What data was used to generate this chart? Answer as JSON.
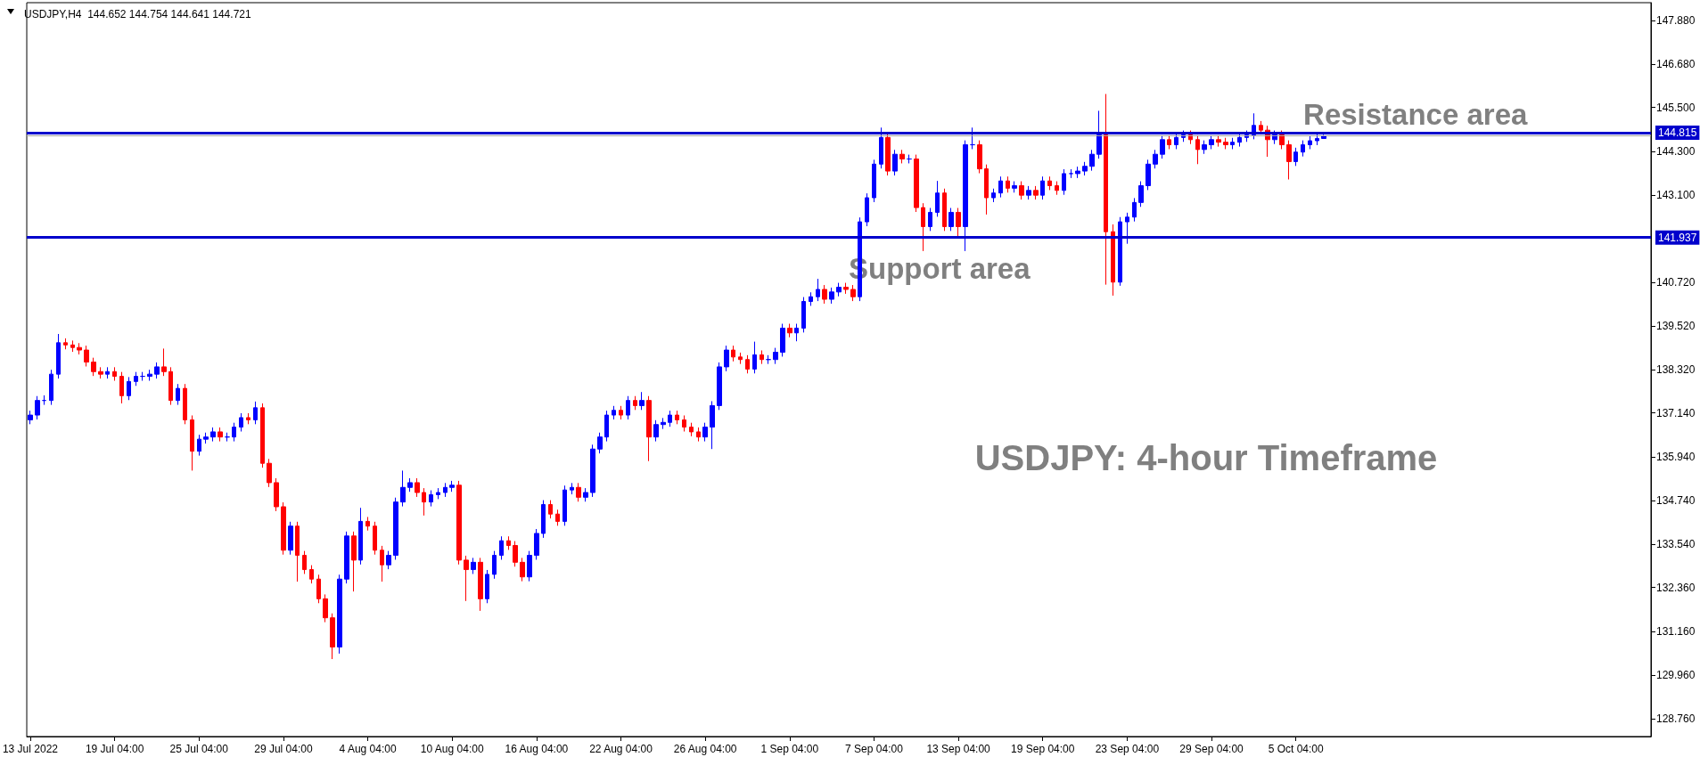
{
  "chart_data": {
    "type": "candlestick",
    "title": "USDJPY,H4  144.652 144.754 144.641 144.721",
    "annotations": [
      {
        "text": "Resistance area",
        "y": 144.815
      },
      {
        "text": "Support area",
        "y": 141.937
      },
      "USDJPY: 4-hour Timeframe"
    ],
    "categories": [
      "13 Jul 2022",
      null,
      null,
      null,
      null,
      null,
      null,
      null,
      null,
      null,
      null,
      null,
      "19 Jul 04:00",
      null,
      null,
      null,
      null,
      null,
      null,
      null,
      null,
      null,
      null,
      null,
      "25 Jul 04:00",
      null,
      null,
      null,
      null,
      null,
      null,
      null,
      null,
      null,
      null,
      null,
      "29 Jul 04:00",
      null,
      null,
      null,
      null,
      null,
      null,
      null,
      null,
      null,
      null,
      null,
      "4 Aug 04:00",
      null,
      null,
      null,
      null,
      null,
      null,
      null,
      null,
      null,
      null,
      null,
      "10 Aug 04:00",
      null,
      null,
      null,
      null,
      null,
      null,
      null,
      null,
      null,
      null,
      null,
      "16 Aug 04:00",
      null,
      null,
      null,
      null,
      null,
      null,
      null,
      null,
      null,
      null,
      null,
      "22 Aug 04:00",
      null,
      null,
      null,
      null,
      null,
      null,
      null,
      null,
      null,
      null,
      null,
      "26 Aug 04:00",
      null,
      null,
      null,
      null,
      null,
      null,
      null,
      null,
      null,
      null,
      null,
      "1 Sep 04:00",
      null,
      null,
      null,
      null,
      null,
      null,
      null,
      null,
      null,
      null,
      null,
      "7 Sep 04:00",
      null,
      null,
      null,
      null,
      null,
      null,
      null,
      null,
      null,
      null,
      null,
      "13 Sep 04:00",
      null,
      null,
      null,
      null,
      null,
      null,
      null,
      null,
      null,
      null,
      null,
      "19 Sep 04:00",
      null,
      null,
      null,
      null,
      null,
      null,
      null,
      null,
      null,
      null,
      null,
      "23 Sep 04:00",
      null,
      null,
      null,
      null,
      null,
      null,
      null,
      null,
      null,
      null,
      null,
      "29 Sep 04:00",
      null,
      null,
      null,
      null,
      null,
      null,
      null,
      null,
      null,
      null,
      null,
      "5 Oct 04:00",
      null,
      null,
      null,
      null,
      null,
      null,
      null,
      null,
      null,
      null,
      null,
      null,
      null,
      null,
      null,
      null,
      null,
      null,
      null,
      null,
      null,
      null,
      null,
      null,
      null,
      null,
      null,
      null,
      null,
      null,
      null,
      null,
      null,
      null,
      null,
      null,
      null,
      null,
      null,
      null,
      null,
      null,
      null,
      null,
      null,
      null,
      null,
      null,
      null,
      null
    ],
    "colors": [
      "#0000ff",
      "#0000ff",
      "#0000ff",
      "#0000ff",
      "#0000ff",
      "#ff0000",
      "#ff0000",
      "#ff0000",
      "#ff0000",
      "#ff0000",
      "#ff0000",
      "#0000ff",
      "#ff0000",
      "#ff0000",
      "#0000ff",
      "#0000ff",
      "#0000ff",
      "#0000ff",
      "#0000ff",
      "#ff0000",
      "#ff0000",
      "#0000ff",
      "#ff0000",
      "#ff0000",
      "#0000ff",
      "#0000ff",
      "#0000ff",
      "#ff0000",
      "#0000ff",
      "#0000ff",
      "#0000ff",
      "#ff0000",
      "#0000ff",
      "#ff0000",
      "#ff0000",
      "#ff0000",
      "#ff0000",
      "#0000ff",
      "#ff0000",
      "#ff0000",
      "#ff0000",
      "#ff0000",
      "#ff0000",
      "#ff0000",
      "#0000ff",
      "#0000ff",
      "#ff0000",
      "#0000ff",
      "#ff0000",
      "#ff0000",
      "#ff0000",
      "#0000ff",
      "#0000ff",
      "#0000ff",
      "#0000ff",
      "#ff0000",
      "#ff0000",
      "#0000ff",
      "#0000ff",
      "#0000ff",
      "#0000ff",
      "#ff0000",
      "#ff0000",
      "#0000ff",
      "#ff0000",
      "#0000ff",
      "#0000ff",
      "#0000ff",
      "#ff0000",
      "#ff0000",
      "#ff0000",
      "#0000ff",
      "#0000ff",
      "#0000ff",
      "#ff0000",
      "#ff0000",
      "#0000ff",
      "#0000ff",
      "#ff0000",
      "#0000ff",
      "#0000ff",
      "#0000ff",
      "#0000ff",
      "#0000ff",
      "#ff0000",
      "#0000ff",
      "#ff0000",
      "#0000ff",
      "#ff0000",
      "#0000ff",
      "#0000ff",
      "#0000ff",
      "#ff0000",
      "#ff0000",
      "#ff0000",
      "#ff0000",
      "#0000ff",
      "#0000ff",
      "#0000ff",
      "#0000ff",
      "#ff0000",
      "#ff0000",
      "#ff0000",
      "#0000ff",
      "#ff0000",
      "#0000ff",
      "#0000ff",
      "#0000ff",
      "#ff0000",
      "#0000ff",
      "#0000ff",
      "#0000ff",
      "#0000ff",
      "#ff0000",
      "#0000ff",
      "#0000ff",
      "#ff0000",
      "#ff0000",
      "#0000ff",
      "#0000ff",
      "#0000ff",
      "#0000ff",
      "#ff0000",
      "#0000ff",
      "#ff0000",
      "#0000ff",
      "#ff0000",
      "#ff0000",
      "#0000ff",
      "#0000ff",
      "#ff0000",
      "#0000ff",
      "#ff0000",
      "#0000ff",
      "#0000ff",
      "#ff0000",
      "#ff0000",
      "#0000ff",
      "#0000ff",
      "#ff0000",
      "#0000ff",
      "#ff0000",
      "#0000ff",
      "#ff0000",
      "#0000ff",
      "#ff0000",
      "#ff0000",
      "#0000ff",
      "#0000ff",
      "#0000ff",
      "#0000ff",
      "#0000ff",
      "#0000ff",
      "#ff0000",
      "#ff0000",
      "#0000ff",
      "#0000ff",
      "#0000ff",
      "#0000ff",
      "#0000ff",
      "#0000ff",
      "#0000ff",
      "#ff0000",
      "#0000ff",
      "#0000ff",
      "#ff0000",
      "#ff0000",
      "#0000ff",
      "#0000ff",
      "#ff0000",
      "#ff0000",
      "#0000ff",
      "#0000ff",
      "#0000ff",
      "#0000ff",
      "#ff0000",
      "#ff0000",
      "#0000ff",
      "#ff0000",
      "#ff0000",
      "#0000ff",
      "#0000ff",
      "#0000ff",
      "#0000ff",
      "#0000ff",
      null,
      null,
      null,
      null,
      null,
      null,
      null,
      null,
      null,
      null,
      null,
      null,
      null,
      null,
      null,
      null,
      null,
      null,
      null,
      null,
      null,
      null,
      null,
      null,
      null,
      null,
      null,
      null,
      null,
      null,
      null,
      null,
      null,
      null,
      null,
      null,
      null,
      null,
      null,
      null,
      null,
      null,
      null,
      null,
      null,
      null
    ],
    "ohlc": [
      [
        136.95,
        137.2,
        136.83,
        137.08
      ],
      [
        137.08,
        137.6,
        136.96,
        137.48
      ],
      [
        137.48,
        137.62,
        137.36,
        137.48
      ],
      [
        137.48,
        138.32,
        137.36,
        138.2
      ],
      [
        138.2,
        139.3,
        138.08,
        139.06
      ],
      [
        139.06,
        139.18,
        138.88,
        139.0
      ],
      [
        139.0,
        139.12,
        138.81,
        138.93
      ],
      [
        138.93,
        139.05,
        138.74,
        138.86
      ],
      [
        138.86,
        138.98,
        138.41,
        138.53
      ],
      [
        138.53,
        138.65,
        138.15,
        138.27
      ],
      [
        138.27,
        138.39,
        138.08,
        138.2
      ],
      [
        138.2,
        138.39,
        138.08,
        138.27
      ],
      [
        138.27,
        138.39,
        138.02,
        138.14
      ],
      [
        138.14,
        138.26,
        137.4,
        137.61
      ],
      [
        137.61,
        138.12,
        137.49,
        138.0
      ],
      [
        138.0,
        138.26,
        137.88,
        138.14
      ],
      [
        138.14,
        138.26,
        138.02,
        138.14
      ],
      [
        138.14,
        138.32,
        138.02,
        138.2
      ],
      [
        138.2,
        138.52,
        138.08,
        138.4
      ],
      [
        138.4,
        138.9,
        138.15,
        138.27
      ],
      [
        138.27,
        138.39,
        137.36,
        137.48
      ],
      [
        137.48,
        137.93,
        137.36,
        137.81
      ],
      [
        137.81,
        137.93,
        136.83,
        136.95
      ],
      [
        136.95,
        137.07,
        135.56,
        136.09
      ],
      [
        136.09,
        136.54,
        135.97,
        136.42
      ],
      [
        136.42,
        136.6,
        136.3,
        136.48
      ],
      [
        136.48,
        136.74,
        136.36,
        136.62
      ],
      [
        136.62,
        136.74,
        136.36,
        136.48
      ],
      [
        136.48,
        136.6,
        136.36,
        136.48
      ],
      [
        136.48,
        136.87,
        136.36,
        136.75
      ],
      [
        136.75,
        137.13,
        136.63,
        137.01
      ],
      [
        137.01,
        137.13,
        136.83,
        136.95
      ],
      [
        136.95,
        137.45,
        136.83,
        137.28
      ],
      [
        137.28,
        137.4,
        135.64,
        135.76
      ],
      [
        135.76,
        135.88,
        135.11,
        135.23
      ],
      [
        135.23,
        135.35,
        134.45,
        134.57
      ],
      [
        134.57,
        134.69,
        133.26,
        133.38
      ],
      [
        133.38,
        134.16,
        133.26,
        134.04
      ],
      [
        134.04,
        134.16,
        132.52,
        133.24
      ],
      [
        133.24,
        133.36,
        132.73,
        132.85
      ],
      [
        132.85,
        132.97,
        132.47,
        132.59
      ],
      [
        132.59,
        132.71,
        131.93,
        132.05
      ],
      [
        132.05,
        132.17,
        131.41,
        131.53
      ],
      [
        131.53,
        131.65,
        130.4,
        130.73
      ],
      [
        130.73,
        132.71,
        130.55,
        132.59
      ],
      [
        132.59,
        133.89,
        132.47,
        133.77
      ],
      [
        133.77,
        133.89,
        132.25,
        133.11
      ],
      [
        133.11,
        134.54,
        132.99,
        134.17
      ],
      [
        134.17,
        134.29,
        133.92,
        134.04
      ],
      [
        134.04,
        134.16,
        133.26,
        133.38
      ],
      [
        133.38,
        133.5,
        132.52,
        132.98
      ],
      [
        132.98,
        133.36,
        132.86,
        133.24
      ],
      [
        133.24,
        134.82,
        133.12,
        134.7
      ],
      [
        134.7,
        135.56,
        134.58,
        135.1
      ],
      [
        135.1,
        135.35,
        134.98,
        135.23
      ],
      [
        135.23,
        135.35,
        134.84,
        134.96
      ],
      [
        134.96,
        135.08,
        134.33,
        134.7
      ],
      [
        134.7,
        135.02,
        134.58,
        134.9
      ],
      [
        134.9,
        135.08,
        134.78,
        134.96
      ],
      [
        134.96,
        135.22,
        134.84,
        135.1
      ],
      [
        135.1,
        135.28,
        134.98,
        135.16
      ],
      [
        135.16,
        135.28,
        132.99,
        133.11
      ],
      [
        133.11,
        133.23,
        131.99,
        132.85
      ],
      [
        132.85,
        133.17,
        132.73,
        133.05
      ],
      [
        133.05,
        133.17,
        131.72,
        132.05
      ],
      [
        132.05,
        132.84,
        131.93,
        132.72
      ],
      [
        132.72,
        133.36,
        132.6,
        133.24
      ],
      [
        133.24,
        133.76,
        133.12,
        133.64
      ],
      [
        133.64,
        133.76,
        133.39,
        133.51
      ],
      [
        133.51,
        133.63,
        132.93,
        133.05
      ],
      [
        133.05,
        133.17,
        132.53,
        132.65
      ],
      [
        132.65,
        133.36,
        132.53,
        133.24
      ],
      [
        133.24,
        133.96,
        133.12,
        133.84
      ],
      [
        133.84,
        134.75,
        133.72,
        134.63
      ],
      [
        134.63,
        134.75,
        134.25,
        134.37
      ],
      [
        134.37,
        134.49,
        134.05,
        134.17
      ],
      [
        134.17,
        135.15,
        134.05,
        135.03
      ],
      [
        135.03,
        135.22,
        134.91,
        135.1
      ],
      [
        135.1,
        135.22,
        134.71,
        134.83
      ],
      [
        134.83,
        135.08,
        134.71,
        134.96
      ],
      [
        134.96,
        136.27,
        134.84,
        136.15
      ],
      [
        136.15,
        136.6,
        136.03,
        136.48
      ],
      [
        136.48,
        137.2,
        136.36,
        137.08
      ],
      [
        137.08,
        137.33,
        136.96,
        137.21
      ],
      [
        137.21,
        137.33,
        136.96,
        137.08
      ],
      [
        137.08,
        137.6,
        136.96,
        137.48
      ],
      [
        137.48,
        137.6,
        137.22,
        137.34
      ],
      [
        137.34,
        137.71,
        137.22,
        137.48
      ],
      [
        137.48,
        137.6,
        135.82,
        136.48
      ],
      [
        136.48,
        136.94,
        136.36,
        136.82
      ],
      [
        136.82,
        137.0,
        136.7,
        136.88
      ],
      [
        136.88,
        137.2,
        136.76,
        137.08
      ],
      [
        137.08,
        137.2,
        136.83,
        136.95
      ],
      [
        136.95,
        137.07,
        136.63,
        136.75
      ],
      [
        136.75,
        136.87,
        136.5,
        136.62
      ],
      [
        136.62,
        136.74,
        136.36,
        136.48
      ],
      [
        136.48,
        136.87,
        136.36,
        136.75
      ],
      [
        136.75,
        137.46,
        136.15,
        137.34
      ],
      [
        137.34,
        138.52,
        137.22,
        138.4
      ],
      [
        138.4,
        138.98,
        138.28,
        138.86
      ],
      [
        138.86,
        138.98,
        138.55,
        138.67
      ],
      [
        138.67,
        138.79,
        138.48,
        138.6
      ],
      [
        138.6,
        138.72,
        138.22,
        138.34
      ],
      [
        138.34,
        139.09,
        138.22,
        138.73
      ],
      [
        138.73,
        138.85,
        138.48,
        138.6
      ],
      [
        138.6,
        138.72,
        138.48,
        138.6
      ],
      [
        138.6,
        138.92,
        138.48,
        138.8
      ],
      [
        138.8,
        139.58,
        138.68,
        139.46
      ],
      [
        139.46,
        139.58,
        139.21,
        139.33
      ],
      [
        139.33,
        139.58,
        139.1,
        139.46
      ],
      [
        139.46,
        140.31,
        139.34,
        140.19
      ],
      [
        140.19,
        140.44,
        140.07,
        140.32
      ],
      [
        140.32,
        140.81,
        140.2,
        140.52
      ],
      [
        140.52,
        140.64,
        140.13,
        140.25
      ],
      [
        140.25,
        140.57,
        140.13,
        140.45
      ],
      [
        140.45,
        140.7,
        140.33,
        140.58
      ],
      [
        140.58,
        140.7,
        140.4,
        140.52
      ],
      [
        140.52,
        140.64,
        140.2,
        140.32
      ],
      [
        140.32,
        142.49,
        140.2,
        142.37
      ],
      [
        142.37,
        143.15,
        142.25,
        143.03
      ],
      [
        143.03,
        144.07,
        142.91,
        143.95
      ],
      [
        143.95,
        144.95,
        143.83,
        144.68
      ],
      [
        144.68,
        144.8,
        143.64,
        143.76
      ],
      [
        143.76,
        144.34,
        143.64,
        144.22
      ],
      [
        144.22,
        144.34,
        143.97,
        144.09
      ],
      [
        144.09,
        144.21,
        143.97,
        144.09
      ],
      [
        144.09,
        144.21,
        142.64,
        142.76
      ],
      [
        142.76,
        142.88,
        141.57,
        142.24
      ],
      [
        142.24,
        142.75,
        142.12,
        142.63
      ],
      [
        142.63,
        143.49,
        142.51,
        143.16
      ],
      [
        143.16,
        143.28,
        142.12,
        142.24
      ],
      [
        142.24,
        142.75,
        142.12,
        142.63
      ],
      [
        142.63,
        142.75,
        141.95,
        142.24
      ],
      [
        142.24,
        144.6,
        141.57,
        144.48
      ],
      [
        144.48,
        144.95,
        144.36,
        144.48
      ],
      [
        144.48,
        144.6,
        143.7,
        143.82
      ],
      [
        143.82,
        143.94,
        142.57,
        143.03
      ],
      [
        143.03,
        143.28,
        142.91,
        143.16
      ],
      [
        143.16,
        143.61,
        143.04,
        143.49
      ],
      [
        143.49,
        143.61,
        143.17,
        143.29
      ],
      [
        143.29,
        143.48,
        143.17,
        143.36
      ],
      [
        143.36,
        143.48,
        142.98,
        143.1
      ],
      [
        143.1,
        143.35,
        142.98,
        143.23
      ],
      [
        143.23,
        143.35,
        142.98,
        143.1
      ],
      [
        143.1,
        143.61,
        142.98,
        143.49
      ],
      [
        143.49,
        143.61,
        143.24,
        143.36
      ],
      [
        143.36,
        143.48,
        143.11,
        143.23
      ],
      [
        143.23,
        143.81,
        143.11,
        143.69
      ],
      [
        143.69,
        143.81,
        143.57,
        143.69
      ],
      [
        143.69,
        143.88,
        143.57,
        143.76
      ],
      [
        143.76,
        144.01,
        143.64,
        143.89
      ],
      [
        143.89,
        144.34,
        143.77,
        144.22
      ],
      [
        144.22,
        145.41,
        144.1,
        144.75
      ],
      [
        144.75,
        145.87,
        140.65,
        142.1
      ],
      [
        142.1,
        142.3,
        140.35,
        140.72
      ],
      [
        140.72,
        142.5,
        140.62,
        142.37
      ],
      [
        142.37,
        142.62,
        141.77,
        142.5
      ],
      [
        142.5,
        143.02,
        142.38,
        142.9
      ],
      [
        142.9,
        143.48,
        142.78,
        143.36
      ],
      [
        143.36,
        144.07,
        143.24,
        143.95
      ],
      [
        143.95,
        144.34,
        143.83,
        144.22
      ],
      [
        144.22,
        144.74,
        144.1,
        144.62
      ],
      [
        144.62,
        144.74,
        144.36,
        144.48
      ],
      [
        144.48,
        144.8,
        144.36,
        144.68
      ],
      [
        144.68,
        144.87,
        144.56,
        144.75
      ],
      [
        144.75,
        144.87,
        144.5,
        144.62
      ],
      [
        144.62,
        144.74,
        143.95,
        144.35
      ],
      [
        144.35,
        144.6,
        144.23,
        144.48
      ],
      [
        144.48,
        144.74,
        144.36,
        144.62
      ],
      [
        144.62,
        144.74,
        144.43,
        144.55
      ],
      [
        144.55,
        144.67,
        144.36,
        144.48
      ],
      [
        144.48,
        144.67,
        144.36,
        144.55
      ],
      [
        144.55,
        144.8,
        144.43,
        144.68
      ],
      [
        144.68,
        144.87,
        144.56,
        144.75
      ],
      [
        144.75,
        145.34,
        144.63,
        145.01
      ],
      [
        145.01,
        145.13,
        144.76,
        144.88
      ],
      [
        144.88,
        145.0,
        144.15,
        144.62
      ],
      [
        144.62,
        144.87,
        144.5,
        144.75
      ],
      [
        144.75,
        144.87,
        144.36,
        144.48
      ],
      [
        144.48,
        144.6,
        143.53,
        144.02
      ],
      [
        144.02,
        144.4,
        143.9,
        144.28
      ],
      [
        144.28,
        144.6,
        144.16,
        144.48
      ],
      [
        144.48,
        144.71,
        144.36,
        144.59
      ],
      [
        144.59,
        144.77,
        144.47,
        144.65
      ],
      [
        144.652,
        144.754,
        144.641,
        144.721
      ],
      null,
      null,
      null,
      null,
      null,
      null,
      null,
      null,
      null,
      null,
      null,
      null,
      null,
      null,
      null,
      null,
      null,
      null,
      null,
      null,
      null,
      null,
      null,
      null,
      null,
      null,
      null,
      null,
      null,
      null,
      null,
      null,
      null,
      null,
      null,
      null,
      null,
      null,
      null,
      null,
      null,
      null,
      null,
      null,
      null,
      null
    ],
    "ylim": [
      128.28,
      148.37
    ],
    "yticks": [
      {
        "value": 128.76,
        "label": "128.760"
      },
      {
        "value": 129.96,
        "label": "129.960"
      },
      {
        "value": 131.16,
        "label": "131.160"
      },
      {
        "value": 132.36,
        "label": "132.360"
      },
      {
        "value": 133.54,
        "label": "133.540"
      },
      {
        "value": 134.74,
        "label": "134.740"
      },
      {
        "value": 135.94,
        "label": "135.940"
      },
      {
        "value": 137.14,
        "label": "137.140"
      },
      {
        "value": 138.32,
        "label": "138.320"
      },
      {
        "value": 139.52,
        "label": "139.520"
      },
      {
        "value": 140.72,
        "label": "140.720"
      },
      {
        "value": 143.1,
        "label": "143.100"
      },
      {
        "value": 144.3,
        "label": "144.300"
      },
      {
        "value": 145.5,
        "label": "145.500"
      },
      {
        "value": 146.68,
        "label": "146.680"
      },
      {
        "value": 147.88,
        "label": "147.880"
      }
    ],
    "ref_lines": [
      {
        "axis": "y",
        "value": 144.815,
        "label": "144.815",
        "color": "#0000cc"
      },
      {
        "axis": "y",
        "value": 141.937,
        "label": "141.937",
        "color": "#0000cc"
      },
      {
        "axis": "y",
        "value": 144.721,
        "color": "#a0a0a0"
      }
    ]
  }
}
